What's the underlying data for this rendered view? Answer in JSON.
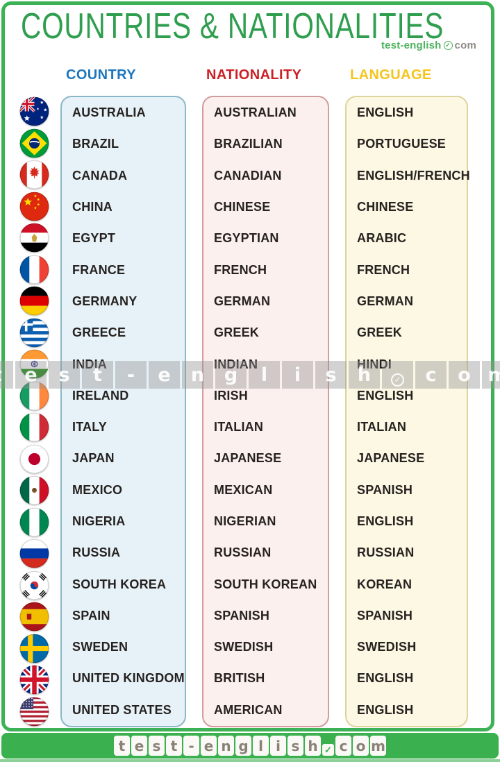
{
  "header": {
    "title": "COUNTRIES & NATIONALITIES",
    "brand": {
      "green": "test-english",
      "check": "✓",
      "gray": "com"
    }
  },
  "columns": {
    "country": {
      "label": "COUNTRY",
      "color": "#1c76bd"
    },
    "nationality": {
      "label": "NATIONALITY",
      "color": "#cb2026"
    },
    "language": {
      "label": "LANGUAGE",
      "color": "#f6c51d"
    }
  },
  "rows": [
    {
      "flag": "australia",
      "country": "AUSTRALIA",
      "nationality": "AUSTRALIAN",
      "language": "ENGLISH"
    },
    {
      "flag": "brazil",
      "country": "BRAZIL",
      "nationality": "BRAZILIAN",
      "language": "PORTUGUESE"
    },
    {
      "flag": "canada",
      "country": "CANADA",
      "nationality": "CANADIAN",
      "language": "ENGLISH/FRENCH"
    },
    {
      "flag": "china",
      "country": "CHINA",
      "nationality": "CHINESE",
      "language": "CHINESE"
    },
    {
      "flag": "egypt",
      "country": "EGYPT",
      "nationality": "EGYPTIAN",
      "language": "ARABIC"
    },
    {
      "flag": "france",
      "country": "FRANCE",
      "nationality": "FRENCH",
      "language": "FRENCH"
    },
    {
      "flag": "germany",
      "country": "GERMANY",
      "nationality": "GERMAN",
      "language": "GERMAN"
    },
    {
      "flag": "greece",
      "country": "GREECE",
      "nationality": "GREEK",
      "language": "GREEK"
    },
    {
      "flag": "india",
      "country": "INDIA",
      "nationality": "INDIAN",
      "language": "HINDI"
    },
    {
      "flag": "ireland",
      "country": "IRELAND",
      "nationality": "IRISH",
      "language": "ENGLISH"
    },
    {
      "flag": "italy",
      "country": "ITALY",
      "nationality": "ITALIAN",
      "language": "ITALIAN"
    },
    {
      "flag": "japan",
      "country": "JAPAN",
      "nationality": "JAPANESE",
      "language": "JAPANESE"
    },
    {
      "flag": "mexico",
      "country": "MEXICO",
      "nationality": "MEXICAN",
      "language": "SPANISH"
    },
    {
      "flag": "nigeria",
      "country": "NIGERIA",
      "nationality": "NIGERIAN",
      "language": "ENGLISH"
    },
    {
      "flag": "russia",
      "country": "RUSSIA",
      "nationality": "RUSSIAN",
      "language": "RUSSIAN"
    },
    {
      "flag": "southkorea",
      "country": "SOUTH KOREA",
      "nationality": "SOUTH KOREAN",
      "language": "KOREAN"
    },
    {
      "flag": "spain",
      "country": "SPAIN",
      "nationality": "SPANISH",
      "language": "SPANISH"
    },
    {
      "flag": "sweden",
      "country": "SWEDEN",
      "nationality": "SWEDISH",
      "language": "SWEDISH"
    },
    {
      "flag": "uk",
      "country": "UNITED KINGDOM",
      "nationality": "BRITISH",
      "language": "ENGLISH"
    },
    {
      "flag": "usa",
      "country": "UNITED STATES",
      "nationality": "AMERICAN",
      "language": "ENGLISH"
    }
  ],
  "watermark": {
    "letters": [
      "t",
      "e",
      "s",
      "t",
      "-",
      "e",
      "n",
      "g",
      "l",
      "i",
      "s",
      "h",
      "✓",
      "c",
      "o",
      "m"
    ]
  },
  "footer": {
    "letters": [
      "t",
      "e",
      "s",
      "t",
      "-",
      "e",
      "n",
      "g",
      "l",
      "i",
      "s",
      "h",
      "✓",
      "c",
      "o",
      "m"
    ]
  },
  "colors": {
    "frame_green": "#3cb155",
    "title_green": "#2f9e4f",
    "footer_green": "#3bb04e",
    "footer_edge_green": "#8ccf97",
    "country_fill": "#e7f2f8",
    "country_border": "#8ab8c8",
    "nationality_fill": "#fbf0ee",
    "nationality_border": "#d09c9c",
    "language_fill": "#fcf8e4",
    "language_border": "#dcd49c",
    "row_text": "#262220",
    "logo_green": "#4db25f",
    "logo_gray": "#8e8a85",
    "footer_letter_gray": "#8a8177"
  }
}
